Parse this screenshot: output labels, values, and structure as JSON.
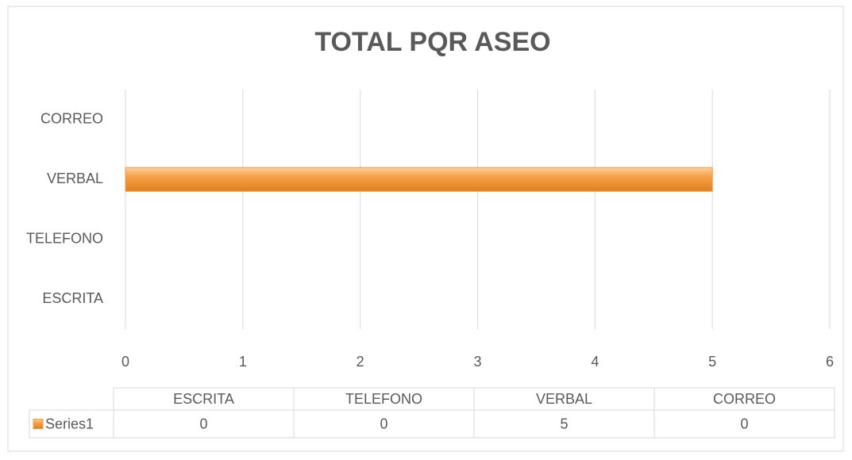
{
  "chart_data": {
    "type": "bar",
    "orientation": "horizontal",
    "title": "TOTAL PQR ASEO",
    "categories": [
      "ESCRITA",
      "TELEFONO",
      "VERBAL",
      "CORREO"
    ],
    "series": [
      {
        "name": "Series1",
        "color": "#f59a3c",
        "values": [
          0,
          0,
          5,
          0
        ]
      }
    ],
    "xlim": [
      0,
      6
    ],
    "xticks": [
      0,
      1,
      2,
      3,
      4,
      5,
      6
    ],
    "grid": true,
    "data_table": true
  }
}
